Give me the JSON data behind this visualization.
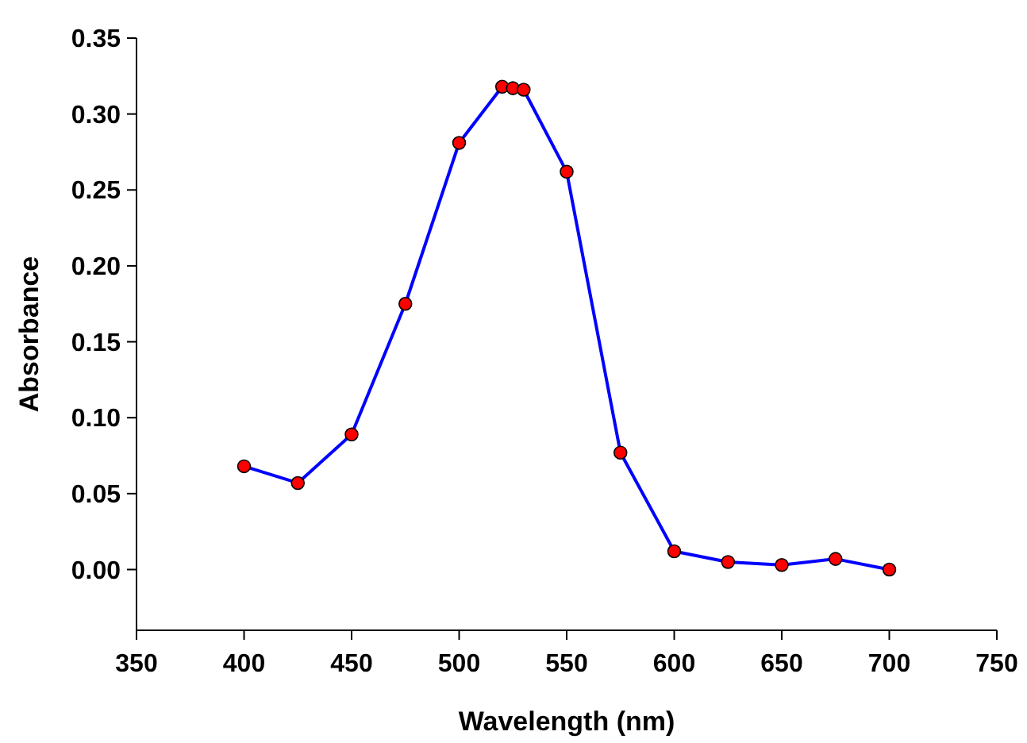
{
  "chart_data": {
    "type": "line",
    "xlabel": "Wavelength (nm)",
    "ylabel": "Absorbance",
    "x": [
      400,
      425,
      450,
      475,
      500,
      520,
      525,
      530,
      550,
      575,
      600,
      625,
      650,
      675,
      700
    ],
    "series": [
      {
        "color": "#0000ff",
        "values": [
          0.068,
          0.057,
          0.089,
          0.175,
          0.281,
          0.318,
          0.317,
          0.316,
          0.262,
          0.077,
          0.012,
          0.005,
          0.003,
          0.007,
          0.0
        ]
      }
    ],
    "xlim": [
      350,
      750
    ],
    "xticks": [
      350,
      400,
      450,
      500,
      550,
      600,
      650,
      700,
      750
    ],
    "ylim": [
      -0.04,
      0.35
    ],
    "yticks": [
      {
        "value": 0,
        "label": "0.00"
      },
      {
        "value": 0.05,
        "label": "0.05"
      },
      {
        "value": 0.1,
        "label": "0.10"
      },
      {
        "value": 0.15,
        "label": "0.15"
      },
      {
        "value": 0.2,
        "label": "0.20"
      },
      {
        "value": 0.25,
        "label": "0.25"
      },
      {
        "value": 0.3,
        "label": "0.30"
      },
      {
        "value": 0.35,
        "label": "0.35"
      }
    ],
    "marker": "circle",
    "grid": false
  }
}
